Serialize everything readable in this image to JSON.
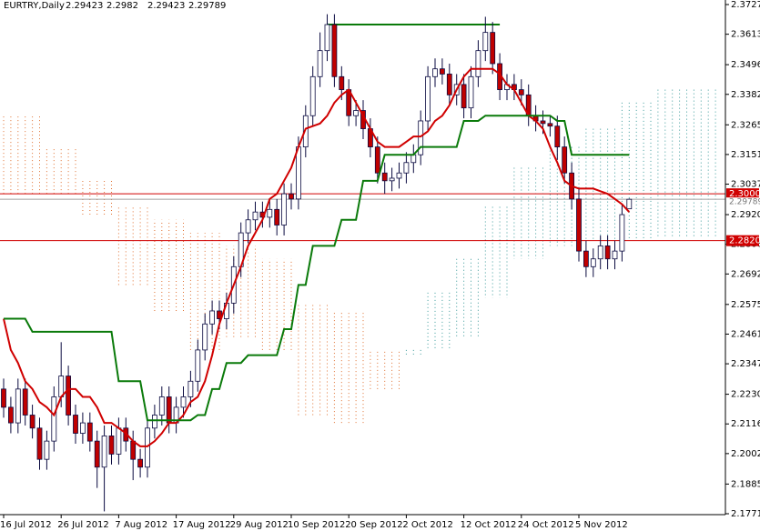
{
  "chart_data": {
    "type": "candlestick",
    "title": "EURTRY,Daily",
    "categories": [
      "16 Jul 2012",
      null,
      null,
      null,
      null,
      null,
      null,
      null,
      "26 Jul 2012",
      null,
      null,
      null,
      null,
      null,
      null,
      null,
      "7 Aug 2012",
      null,
      null,
      null,
      null,
      null,
      null,
      null,
      "17 Aug 2012",
      null,
      null,
      null,
      null,
      null,
      null,
      null,
      "29 Aug 2012",
      null,
      null,
      null,
      null,
      null,
      null,
      null,
      "10 Sep 2012",
      null,
      null,
      null,
      null,
      null,
      null,
      null,
      "20 Sep 2012",
      null,
      null,
      null,
      null,
      null,
      null,
      null,
      "2 Oct 2012",
      null,
      null,
      null,
      null,
      null,
      null,
      null,
      "12 Oct 2012",
      null,
      null,
      null,
      null,
      null,
      null,
      null,
      "24 Oct 2012",
      null,
      null,
      null,
      null,
      null,
      null,
      null,
      "5 Nov 2012",
      null,
      null,
      null,
      null,
      null,
      null,
      null
    ],
    "candles": {
      "up_color": "#ffffff",
      "down_color": "#c00000",
      "outline_color": "#0a0a40",
      "open": [
        2.225,
        2.218,
        2.212,
        2.225,
        2.215,
        2.21,
        2.198,
        2.205,
        2.222,
        2.23,
        2.215,
        2.208,
        2.212,
        2.205,
        2.195,
        2.207,
        2.2,
        2.21,
        2.205,
        2.198,
        2.195,
        2.21,
        2.215,
        2.222,
        2.212,
        2.218,
        2.222,
        2.228,
        2.24,
        2.25,
        2.255,
        2.252,
        2.258,
        2.272,
        2.285,
        2.29,
        2.293,
        2.291,
        2.294,
        2.288,
        2.3,
        2.298,
        2.318,
        2.33,
        2.345,
        2.355,
        2.365,
        2.345,
        2.34,
        2.33,
        2.332,
        2.325,
        2.318,
        2.308,
        2.305,
        2.306,
        2.308,
        2.312,
        2.315,
        2.328,
        2.345,
        2.348,
        2.346,
        2.338,
        2.342,
        2.333,
        2.345,
        2.355,
        2.362,
        2.35,
        2.34,
        2.342,
        2.34,
        2.338,
        2.33,
        2.328,
        2.327,
        2.326,
        2.318,
        2.308,
        2.298,
        2.278,
        2.272,
        2.275,
        2.28,
        2.275,
        2.278,
        2.29423
      ],
      "high": [
        2.229,
        2.222,
        2.229,
        2.229,
        2.219,
        2.214,
        2.209,
        2.226,
        2.243,
        2.234,
        2.219,
        2.216,
        2.216,
        2.209,
        2.211,
        2.211,
        2.214,
        2.214,
        2.209,
        2.202,
        2.214,
        2.219,
        2.226,
        2.226,
        2.222,
        2.226,
        2.232,
        2.244,
        2.254,
        2.259,
        2.259,
        2.262,
        2.276,
        2.289,
        2.294,
        2.297,
        2.297,
        2.298,
        2.298,
        2.304,
        2.304,
        2.322,
        2.334,
        2.349,
        2.362,
        2.369,
        2.369,
        2.349,
        2.344,
        2.336,
        2.336,
        2.329,
        2.322,
        2.312,
        2.31,
        2.312,
        2.316,
        2.319,
        2.332,
        2.349,
        2.352,
        2.352,
        2.35,
        2.346,
        2.346,
        2.349,
        2.359,
        2.368,
        2.366,
        2.354,
        2.346,
        2.346,
        2.344,
        2.342,
        2.334,
        2.332,
        2.33,
        2.33,
        2.322,
        2.312,
        2.302,
        2.282,
        2.279,
        2.284,
        2.284,
        2.282,
        2.296,
        2.2982
      ],
      "low": [
        2.214,
        2.208,
        2.208,
        2.211,
        2.206,
        2.194,
        2.194,
        2.201,
        2.218,
        2.211,
        2.204,
        2.204,
        2.201,
        2.187,
        2.178,
        2.196,
        2.196,
        2.201,
        2.19,
        2.191,
        2.191,
        2.206,
        2.211,
        2.208,
        2.208,
        2.214,
        2.218,
        2.224,
        2.236,
        2.246,
        2.248,
        2.248,
        2.254,
        2.268,
        2.281,
        2.286,
        2.287,
        2.287,
        2.284,
        2.284,
        2.294,
        2.294,
        2.314,
        2.326,
        2.341,
        2.351,
        2.341,
        2.336,
        2.326,
        2.326,
        2.321,
        2.314,
        2.304,
        2.3,
        2.301,
        2.302,
        2.304,
        2.308,
        2.311,
        2.324,
        2.341,
        2.342,
        2.334,
        2.334,
        2.329,
        2.329,
        2.341,
        2.351,
        2.346,
        2.336,
        2.336,
        2.336,
        2.334,
        2.326,
        2.324,
        2.323,
        2.322,
        2.313,
        2.304,
        2.294,
        2.274,
        2.268,
        2.268,
        2.271,
        2.271,
        2.271,
        2.274,
        2.29423
      ],
      "close": [
        2.218,
        2.212,
        2.225,
        2.215,
        2.21,
        2.198,
        2.205,
        2.222,
        2.23,
        2.215,
        2.208,
        2.212,
        2.205,
        2.195,
        2.207,
        2.2,
        2.21,
        2.205,
        2.198,
        2.195,
        2.21,
        2.215,
        2.222,
        2.212,
        2.218,
        2.222,
        2.228,
        2.24,
        2.25,
        2.255,
        2.252,
        2.258,
        2.272,
        2.285,
        2.29,
        2.293,
        2.291,
        2.294,
        2.288,
        2.3,
        2.298,
        2.318,
        2.33,
        2.345,
        2.355,
        2.365,
        2.345,
        2.34,
        2.33,
        2.332,
        2.325,
        2.318,
        2.308,
        2.305,
        2.306,
        2.308,
        2.312,
        2.315,
        2.328,
        2.345,
        2.348,
        2.346,
        2.338,
        2.342,
        2.333,
        2.345,
        2.355,
        2.362,
        2.35,
        2.34,
        2.342,
        2.34,
        2.338,
        2.33,
        2.328,
        2.327,
        2.326,
        2.318,
        2.308,
        2.298,
        2.278,
        2.272,
        2.275,
        2.28,
        2.275,
        2.278,
        2.292,
        2.29789
      ]
    },
    "lines": [
      {
        "color": "#d00000",
        "values": [
          2.252,
          2.24,
          2.235,
          2.228,
          2.225,
          2.22,
          2.218,
          2.215,
          2.222,
          2.225,
          2.225,
          2.222,
          2.222,
          2.218,
          2.212,
          2.212,
          2.21,
          2.208,
          2.205,
          2.203,
          2.203,
          2.205,
          2.208,
          2.212,
          2.212,
          2.215,
          2.22,
          2.222,
          2.228,
          2.238,
          2.25,
          2.258,
          2.265,
          2.272,
          2.28,
          2.285,
          2.29,
          2.298,
          2.3,
          2.305,
          2.31,
          2.318,
          2.325,
          2.326,
          2.327,
          2.33,
          2.335,
          2.338,
          2.34,
          2.335,
          2.33,
          2.325,
          2.32,
          2.318,
          2.318,
          2.318,
          2.32,
          2.322,
          2.322,
          2.324,
          2.328,
          2.33,
          2.334,
          2.34,
          2.345,
          2.348,
          2.348,
          2.348,
          2.348,
          2.346,
          2.342,
          2.34,
          2.335,
          2.33,
          2.328,
          2.325,
          2.318,
          2.312,
          2.305,
          2.303,
          2.302,
          2.302,
          2.302,
          2.301,
          2.3,
          2.298,
          2.296,
          2.293
        ]
      },
      {
        "color": "#0a7a0a",
        "values": [
          2.252,
          2.252,
          2.252,
          2.252,
          2.247,
          2.247,
          2.247,
          2.247,
          2.247,
          2.247,
          2.247,
          2.247,
          2.247,
          2.247,
          2.247,
          2.247,
          2.228,
          2.228,
          2.228,
          2.228,
          2.213,
          2.213,
          2.213,
          2.213,
          2.213,
          2.213,
          2.213,
          2.215,
          2.215,
          2.225,
          2.225,
          2.235,
          2.235,
          2.235,
          2.238,
          2.238,
          2.238,
          2.238,
          2.238,
          2.248,
          2.248,
          2.265,
          2.265,
          2.28,
          2.28,
          2.28,
          2.28,
          2.29,
          2.29,
          2.29,
          2.305,
          2.305,
          2.305,
          2.315,
          2.315,
          2.315,
          2.315,
          2.315,
          2.318,
          2.318,
          2.318,
          2.318,
          2.318,
          2.318,
          2.328,
          2.328,
          2.328,
          2.33,
          2.33,
          2.33,
          2.33,
          2.33,
          2.33,
          2.33,
          2.33,
          2.33,
          2.33,
          2.328,
          2.328,
          2.315,
          2.315,
          2.315,
          2.315,
          2.315,
          2.315,
          2.315,
          2.315,
          2.315
        ]
      }
    ],
    "cloud": {
      "bear_color": "#e07030",
      "bull_color": "#3a9a9a",
      "span_a": [
        2.3,
        2.3,
        2.3,
        2.3,
        2.3,
        2.3,
        2.3,
        2.3,
        2.3,
        2.3,
        2.3,
        2.292,
        2.292,
        2.292,
        2.292,
        2.292,
        2.265,
        2.265,
        2.265,
        2.265,
        2.265,
        2.255,
        2.255,
        2.255,
        2.255,
        2.255,
        2.24,
        2.24,
        2.24,
        2.24,
        2.24,
        2.245,
        2.245,
        2.245,
        2.245,
        2.245,
        2.24,
        2.24,
        2.24,
        2.24,
        2.24,
        2.215,
        2.215,
        2.215,
        2.215,
        2.215,
        2.212,
        2.212,
        2.212,
        2.212,
        2.212,
        2.225,
        2.225,
        2.225,
        2.225,
        2.225,
        2.24,
        2.24,
        2.24,
        2.262,
        2.262,
        2.262,
        2.262,
        2.275,
        2.275,
        2.275,
        2.275,
        2.295,
        2.295,
        2.295,
        2.295,
        2.31,
        2.31,
        2.31,
        2.31,
        2.31,
        2.318,
        2.318,
        2.318,
        2.318,
        2.318,
        2.325,
        2.325,
        2.325,
        2.325,
        2.325,
        2.335,
        2.335,
        2.335,
        2.335,
        2.335,
        2.34,
        2.34,
        2.34,
        2.34,
        2.34,
        2.34,
        2.34,
        2.34,
        2.34
      ],
      "span_b": [
        2.33,
        2.33,
        2.33,
        2.33,
        2.33,
        2.33,
        2.318,
        2.318,
        2.318,
        2.318,
        2.318,
        2.305,
        2.305,
        2.305,
        2.305,
        2.305,
        2.295,
        2.295,
        2.295,
        2.295,
        2.295,
        2.29,
        2.29,
        2.29,
        2.29,
        2.29,
        2.285,
        2.285,
        2.285,
        2.285,
        2.285,
        2.28,
        2.28,
        2.28,
        2.28,
        2.28,
        2.275,
        2.275,
        2.275,
        2.275,
        2.275,
        2.258,
        2.258,
        2.258,
        2.258,
        2.258,
        2.255,
        2.255,
        2.255,
        2.255,
        2.255,
        2.24,
        2.24,
        2.24,
        2.24,
        2.24,
        2.238,
        2.238,
        2.238,
        2.24,
        2.24,
        2.24,
        2.24,
        2.245,
        2.245,
        2.245,
        2.245,
        2.26,
        2.26,
        2.26,
        2.26,
        2.275,
        2.275,
        2.275,
        2.275,
        2.275,
        2.28,
        2.28,
        2.28,
        2.28,
        2.28,
        2.282,
        2.282,
        2.282,
        2.282,
        2.282,
        2.282,
        2.282,
        2.282,
        2.282,
        2.282,
        2.283,
        2.283,
        2.283,
        2.283,
        2.283,
        2.283,
        2.283,
        2.283,
        2.283
      ]
    },
    "trendline": {
      "from": 45,
      "to": 69,
      "value": 2.365,
      "color": "#0a7a0a"
    },
    "levels": [
      {
        "value": 2.3,
        "label": "2.30000",
        "color": "#d00000"
      },
      {
        "value": 2.282,
        "label": "2.28200",
        "color": "#d00000"
      }
    ],
    "price_line_color": "#a0a0a0",
    "ylim": [
      2.1771,
      2.3727
    ],
    "yticks": [
      {
        "value": 2.3727,
        "label": "2.37270"
      },
      {
        "value": 2.3613,
        "label": "2.36130"
      },
      {
        "value": 2.3496,
        "label": "2.34960"
      },
      {
        "value": 2.3382,
        "label": "2.33820"
      },
      {
        "value": 2.3265,
        "label": "2.32650"
      },
      {
        "value": 2.3151,
        "label": "2.31510"
      },
      {
        "value": 2.3037,
        "label": "2.30370"
      },
      {
        "value": 2.292,
        "label": "2.29200"
      },
      {
        "value": 2.2806,
        "label": "2.28060"
      },
      {
        "value": 2.2692,
        "label": "2.26920"
      },
      {
        "value": 2.2575,
        "label": "2.25750"
      },
      {
        "value": 2.2461,
        "label": "2.24610"
      },
      {
        "value": 2.2347,
        "label": "2.23470"
      },
      {
        "value": 2.223,
        "label": "2.22300"
      },
      {
        "value": 2.2116,
        "label": "2.21160"
      },
      {
        "value": 2.2002,
        "label": "2.20020"
      },
      {
        "value": 2.1885,
        "label": "2.18850"
      },
      {
        "value": 2.1771,
        "label": "2.17710"
      }
    ]
  }
}
